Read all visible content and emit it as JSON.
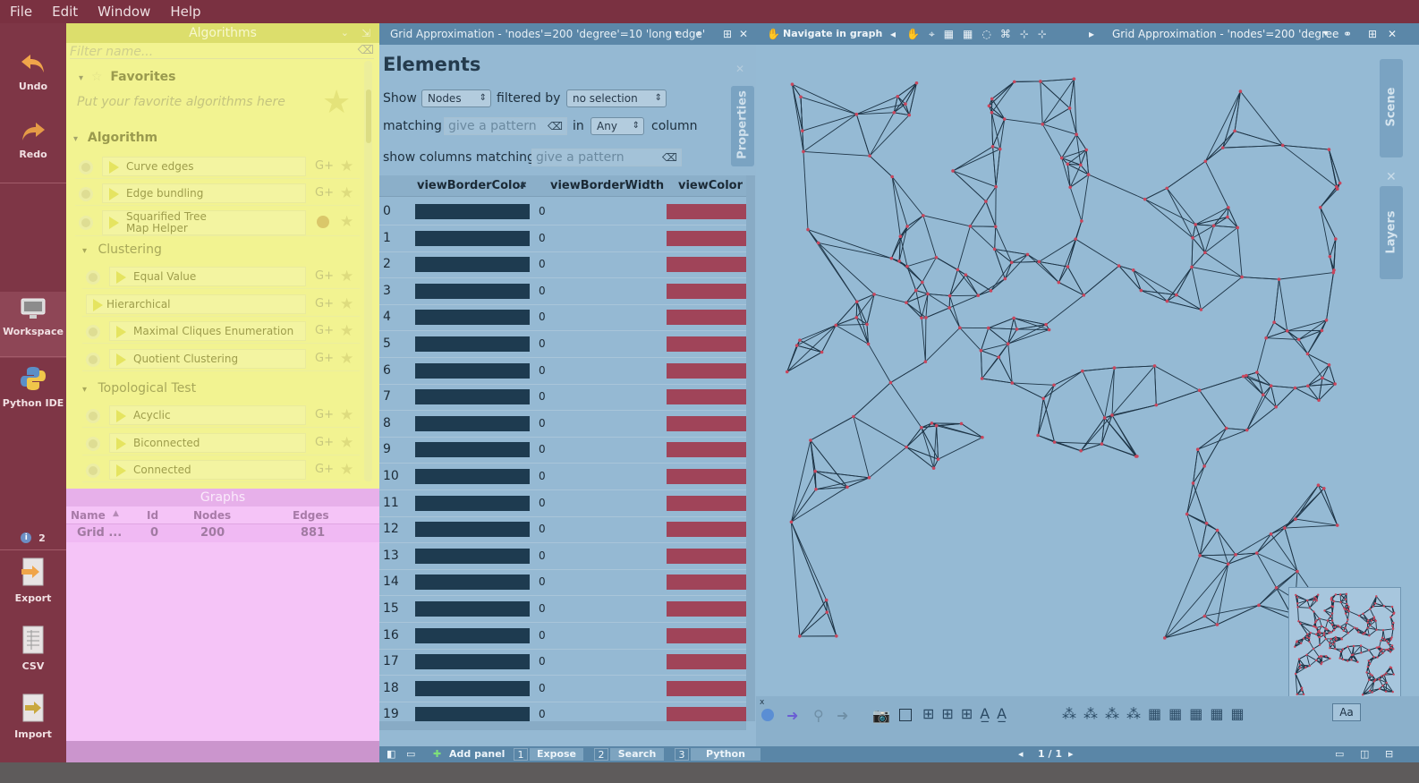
{
  "menubar": {
    "items": [
      "File",
      "Edit",
      "Window",
      "Help"
    ]
  },
  "toolbar": {
    "undo": "Undo",
    "redo": "Redo",
    "workspace": "Workspace",
    "python_ide": "Python IDE",
    "notifications_count": "2",
    "export": "Export",
    "csv": "CSV",
    "import": "Import"
  },
  "algorithms": {
    "title": "Algorithms",
    "filter_placeholder": "Filter name...",
    "favorites_label": "Favorites",
    "favorites_hint": "Put your favorite algorithms here",
    "algorithm_label": "Algorithm",
    "items_top": [
      "Curve edges",
      "Edge bundling"
    ],
    "squarified_line1": "Squarified Tree",
    "squarified_line2": "Map Helper",
    "clustering_label": "Clustering",
    "clustering_items": [
      "Equal Value",
      "Hierarchical",
      "Maximal Cliques Enumeration",
      "Quotient Clustering"
    ],
    "topological_label": "Topological Test",
    "topological_items": [
      "Acyclic",
      "Biconnected",
      "Connected"
    ]
  },
  "graphs": {
    "title": "Graphs",
    "columns": [
      "Name",
      "Id",
      "Nodes",
      "Edges"
    ],
    "row": {
      "name": "Grid ...",
      "id": "0",
      "nodes": "200",
      "edges": "881"
    }
  },
  "elements": {
    "tab_title": "Grid Approximation - 'nodes'=200 'degree'=10 'long edge'",
    "heading": "Elements",
    "show_label": "Show",
    "show_value": "Nodes",
    "filtered_by_label": "filtered by",
    "filter_value": "no selection",
    "matching_label": "matching",
    "pattern_placeholder": "give a pattern",
    "in_label": "in",
    "column_value": "Any",
    "column_label": "column",
    "show_columns_label": "show columns matching",
    "columns_pattern_placeholder": "give a pattern",
    "properties_tab": "Properties",
    "table_headers": [
      "viewBorderColor",
      "viewBorderWidth",
      "viewColor"
    ],
    "border_color": "#1e3b50",
    "view_color": "#a04459",
    "rows": [
      {
        "idx": "0",
        "bw": "0"
      },
      {
        "idx": "1",
        "bw": "0"
      },
      {
        "idx": "2",
        "bw": "0"
      },
      {
        "idx": "3",
        "bw": "0"
      },
      {
        "idx": "4",
        "bw": "0"
      },
      {
        "idx": "5",
        "bw": "0"
      },
      {
        "idx": "6",
        "bw": "0"
      },
      {
        "idx": "7",
        "bw": "0"
      },
      {
        "idx": "8",
        "bw": "0"
      },
      {
        "idx": "9",
        "bw": "0"
      },
      {
        "idx": "10",
        "bw": "0"
      },
      {
        "idx": "11",
        "bw": "0"
      },
      {
        "idx": "12",
        "bw": "0"
      },
      {
        "idx": "13",
        "bw": "0"
      },
      {
        "idx": "14",
        "bw": "0"
      },
      {
        "idx": "15",
        "bw": "0"
      },
      {
        "idx": "16",
        "bw": "0"
      },
      {
        "idx": "17",
        "bw": "0"
      },
      {
        "idx": "18",
        "bw": "0"
      },
      {
        "idx": "19",
        "bw": "0"
      }
    ]
  },
  "graphview": {
    "navigate_label": "Navigate in graph",
    "tab_title": "Grid Approximation - 'nodes'=200 'degree",
    "scene_tab": "Scene",
    "layers_tab": "Layers",
    "font_button": "Aa",
    "edge_color": "#1e3547",
    "node_color": "#c8465d"
  },
  "bottombar": {
    "add_panel": "Add panel",
    "tabs": [
      {
        "num": "1",
        "label": "Expose"
      },
      {
        "num": "2",
        "label": "Search"
      },
      {
        "num": "3",
        "label": "Python REPL"
      }
    ],
    "page": "1 / 1"
  }
}
